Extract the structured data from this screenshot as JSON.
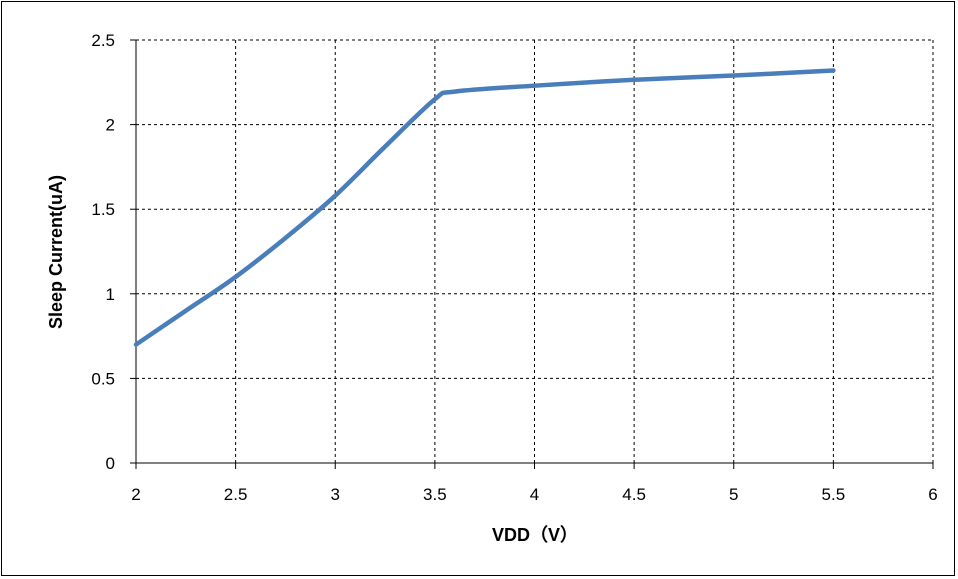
{
  "chart_data": {
    "type": "line",
    "title": "",
    "xlabel": "VDD（V）",
    "ylabel": "Sleep Current(uA)",
    "xlim": [
      2,
      6
    ],
    "ylim": [
      0,
      2.5
    ],
    "x_ticks": [
      "2",
      "2.5",
      "3",
      "3.5",
      "4",
      "4.5",
      "5",
      "5.5",
      "6"
    ],
    "y_ticks": [
      "0",
      "0.5",
      "1",
      "1.5",
      "2",
      "2.5"
    ],
    "grid": true,
    "legend": "none",
    "line_color": "#4a7ebb",
    "series": [
      {
        "x": [
          2.0,
          2.25,
          2.5,
          2.75,
          3.0,
          3.25,
          3.5,
          3.6,
          4.0,
          4.5,
          5.0,
          5.5
        ],
        "values": [
          0.7,
          0.9,
          1.1,
          1.33,
          1.58,
          1.87,
          2.15,
          2.195,
          2.23,
          2.265,
          2.29,
          2.32
        ]
      }
    ]
  }
}
